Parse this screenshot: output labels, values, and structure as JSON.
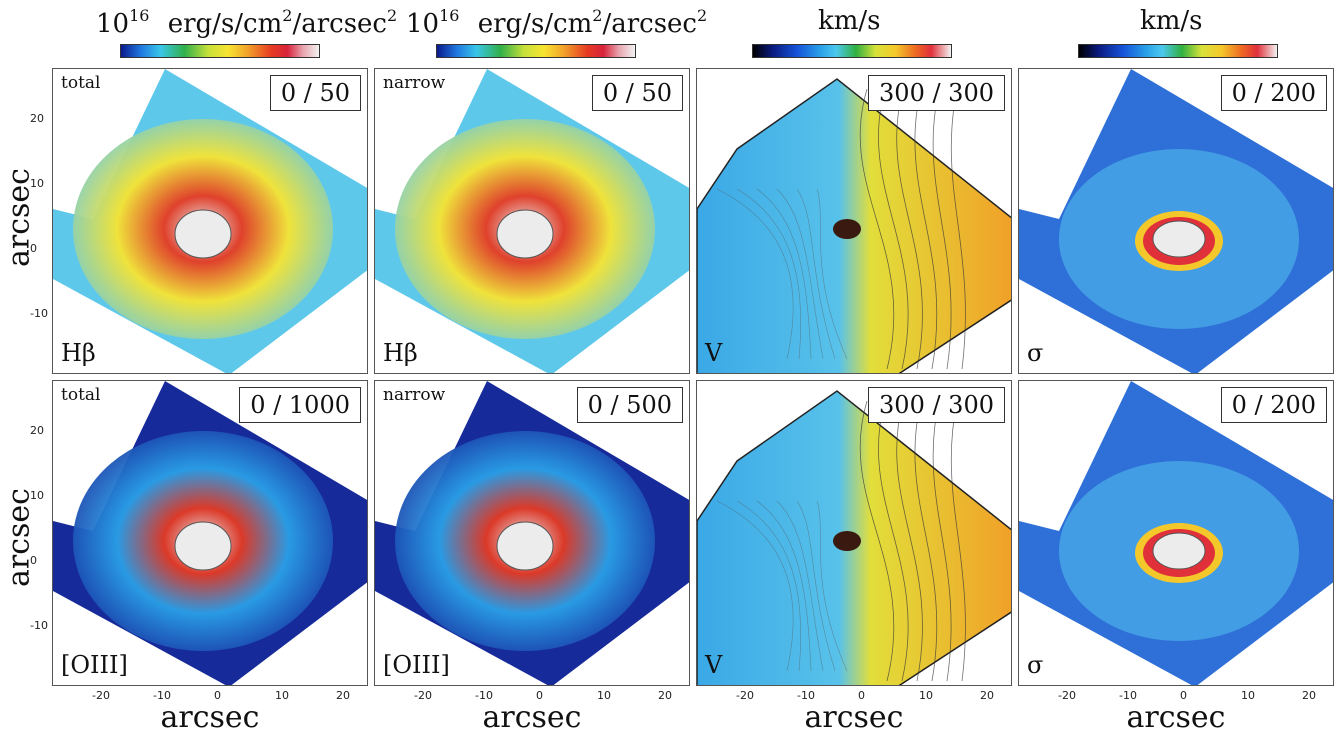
{
  "colorbars": [
    {
      "exponent": "10",
      "sup": "16",
      "unit_main": "erg/s/cm",
      "unit_sup": "2",
      "unit_tail": "/arcsec",
      "unit_sup2": "2",
      "type": "flux"
    },
    {
      "exponent": "10",
      "sup": "16",
      "unit_main": "erg/s/cm",
      "unit_sup": "2",
      "unit_tail": "/arcsec",
      "unit_sup2": "2",
      "type": "flux"
    },
    {
      "unit": "km/s",
      "type": "vel"
    },
    {
      "unit": "km/s",
      "type": "vel"
    }
  ],
  "rows": [
    {
      "y_axis_label": "arcsec",
      "panels": [
        {
          "corner_label": "total",
          "range": "0 / 50",
          "line_label": "Hβ",
          "map": "hb_total"
        },
        {
          "corner_label": "narrow",
          "range": "0 / 50",
          "line_label": "Hβ",
          "map": "hb_narrow"
        },
        {
          "corner_label": "",
          "range": "300 / 300",
          "line_label": "V",
          "map": "vel1"
        },
        {
          "corner_label": "",
          "range": "0 / 200",
          "line_label": "σ",
          "map": "sig1"
        }
      ]
    },
    {
      "y_axis_label": "arcsec",
      "panels": [
        {
          "corner_label": "total",
          "range": "0 / 1000",
          "line_label": "[OIII]",
          "map": "o3_total"
        },
        {
          "corner_label": "narrow",
          "range": "0 / 500",
          "line_label": "[OIII]",
          "map": "o3_narrow"
        },
        {
          "corner_label": "",
          "range": "300 / 300",
          "line_label": "V",
          "map": "vel2"
        },
        {
          "corner_label": "",
          "range": "0 / 200",
          "line_label": "σ",
          "map": "sig2"
        }
      ]
    }
  ],
  "x_axis_label": "arcsec",
  "y_ticks": [
    "20",
    "10",
    "0",
    "-10"
  ],
  "x_ticks": [
    "-20",
    "-10",
    "0",
    "10",
    "20"
  ]
}
